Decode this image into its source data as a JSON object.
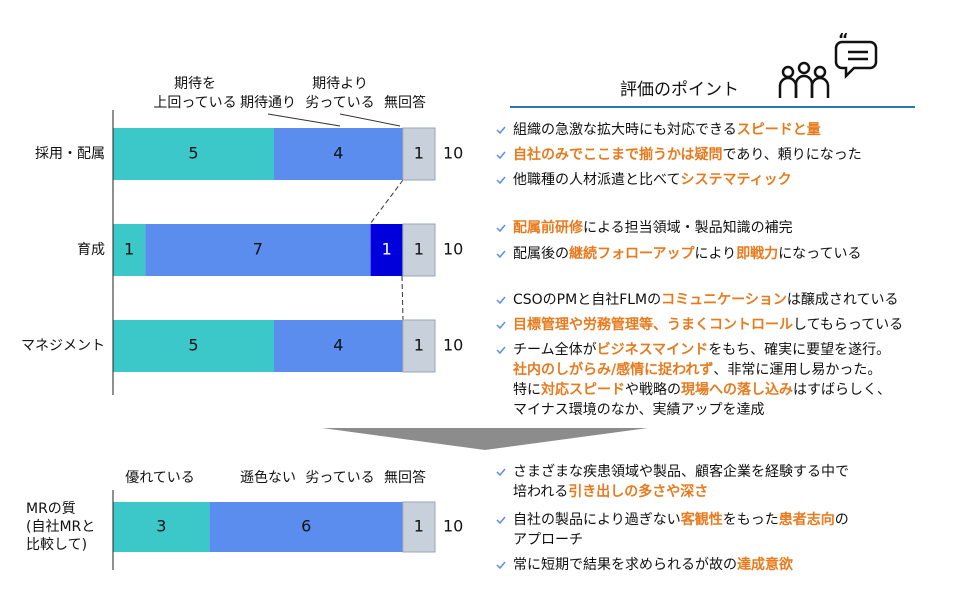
{
  "chart_data": [
    {
      "type": "bar",
      "orientation": "horizontal",
      "stacked": true,
      "categories": [
        "採用・配属",
        "育成",
        "マネジメント"
      ],
      "series": [
        {
          "name": "期待を\n上回っている",
          "color": "#3cc8c8",
          "values": [
            5,
            1,
            5
          ]
        },
        {
          "name": "期待通り",
          "color": "#5b8def",
          "values": [
            4,
            7,
            4
          ]
        },
        {
          "name": "期待より\n劣っている",
          "color": "#0000dd",
          "values": [
            0,
            1,
            0
          ]
        },
        {
          "name": "無回答",
          "color": "#c8d0dc",
          "values": [
            1,
            1,
            1
          ]
        }
      ],
      "totals": [
        10,
        10,
        10
      ],
      "xlim": [
        0,
        10
      ]
    },
    {
      "type": "bar",
      "orientation": "horizontal",
      "stacked": true,
      "categories": [
        "MRの質\n(自社MRと\n比較して)"
      ],
      "series": [
        {
          "name": "優れている",
          "color": "#3cc8c8",
          "values": [
            3
          ]
        },
        {
          "name": "遜色ない",
          "color": "#5b8def",
          "values": [
            6
          ]
        },
        {
          "name": "劣っている",
          "color": "#0000dd",
          "values": [
            0
          ]
        },
        {
          "name": "無回答",
          "color": "#c8d0dc",
          "values": [
            1
          ]
        }
      ],
      "totals": [
        10
      ],
      "xlim": [
        0,
        10
      ]
    }
  ],
  "points_title": "評価のポイント",
  "highlight_color": "#e87a1e",
  "points": [
    {
      "lines": [
        [
          {
            "text": "組織の急激な拡大時にも対応できる"
          },
          {
            "text": "スピードと量",
            "highlight": true
          }
        ]
      ]
    },
    {
      "lines": [
        [
          {
            "text": "自社のみでここまで揃うかは疑問",
            "highlight": true
          },
          {
            "text": "であり、頼りになった"
          }
        ]
      ]
    },
    {
      "lines": [
        [
          {
            "text": "他職種の人材派遣と比べて"
          },
          {
            "text": "システマティック",
            "highlight": true
          }
        ]
      ]
    },
    {
      "lines": [
        [
          {
            "text": "配属前研修",
            "highlight": true
          },
          {
            "text": "による担当領域・製品知識の補完"
          }
        ]
      ]
    },
    {
      "lines": [
        [
          {
            "text": "配属後の"
          },
          {
            "text": "継続フォローアップ",
            "highlight": true
          },
          {
            "text": "により"
          },
          {
            "text": "即戦力",
            "highlight": true
          },
          {
            "text": "になっている"
          }
        ]
      ]
    },
    {
      "lines": [
        [
          {
            "text": "CSOのPMと自社FLMの"
          },
          {
            "text": "コミュニケーション",
            "highlight": true
          },
          {
            "text": "は醸成されている"
          }
        ]
      ]
    },
    {
      "lines": [
        [
          {
            "text": "目標管理や労務管理等、うまくコントロール",
            "highlight": true
          },
          {
            "text": "してもらっている"
          }
        ]
      ]
    },
    {
      "lines": [
        [
          {
            "text": "チーム全体が"
          },
          {
            "text": "ビジネスマインド",
            "highlight": true
          },
          {
            "text": "をもち、確実に要望を遂行。"
          }
        ],
        [
          {
            "text": "社内のしがらみ/感情に捉われず",
            "highlight": true
          },
          {
            "text": "、非常に運用し易かった。"
          }
        ],
        [
          {
            "text": "特に"
          },
          {
            "text": "対応スピード",
            "highlight": true
          },
          {
            "text": "や戦略の"
          },
          {
            "text": "現場への落し込み",
            "highlight": true
          },
          {
            "text": "はすばらしく、"
          }
        ],
        [
          {
            "text": "マイナス環境のなか、実績アップを達成"
          }
        ]
      ]
    },
    {
      "lines": [
        [
          {
            "text": "さまざまな疾患領域や製品、顧客企業を経験する中で"
          }
        ],
        [
          {
            "text": "培われる"
          },
          {
            "text": "引き出しの多さや深さ",
            "highlight": true
          }
        ]
      ]
    },
    {
      "lines": [
        [
          {
            "text": "自社の製品により過ぎない"
          },
          {
            "text": "客観性",
            "highlight": true
          },
          {
            "text": "をもった"
          },
          {
            "text": "患者志向",
            "highlight": true
          },
          {
            "text": "の"
          }
        ],
        [
          {
            "text": "アプローチ"
          }
        ]
      ]
    },
    {
      "lines": [
        [
          {
            "text": "常に短期で結果を求められるが故の"
          },
          {
            "text": "達成意欲",
            "highlight": true
          }
        ]
      ]
    }
  ]
}
